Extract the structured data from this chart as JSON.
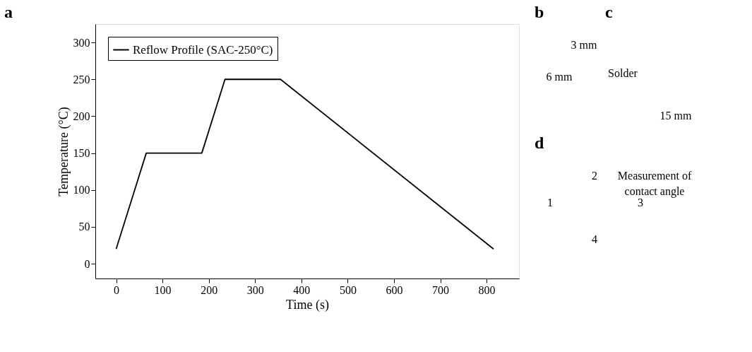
{
  "chart_data": [
    {
      "type": "line",
      "title": "a",
      "xlabel": "Time (s)",
      "ylabel": "Temperature (°C)",
      "x": [
        0,
        65,
        185,
        235,
        355,
        815
      ],
      "series": [
        {
          "name": "Reflow Profile (SAC-250°C)",
          "color": "#000000",
          "values": [
            20,
            150,
            150,
            250,
            250,
            20
          ]
        }
      ],
      "xlim": [
        -45,
        870
      ],
      "xticks": [
        0,
        100,
        200,
        300,
        400,
        500,
        600,
        700,
        800
      ],
      "ylim": [
        -20,
        325
      ],
      "yticks": [
        0,
        50,
        100,
        150,
        200,
        250,
        300
      ],
      "grid": false,
      "legend": "top left",
      "marker": "none",
      "line_style": "solid"
    },
    {
      "type": "other",
      "title": "b",
      "annotations": [
        "6 mm",
        "3 mm"
      ]
    },
    {
      "type": "other",
      "title": "c",
      "annotations": [
        "Solder",
        "15 mm"
      ]
    },
    {
      "type": "other",
      "title": "d",
      "annotations": [
        "Measurement of",
        "contact angle",
        "1",
        "2",
        "3",
        "4"
      ]
    }
  ]
}
